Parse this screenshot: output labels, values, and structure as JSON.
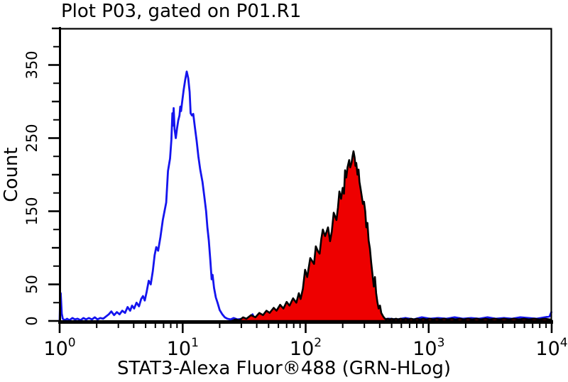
{
  "chart_data": {
    "type": "line",
    "title": "Plot P03, gated on P01.R1",
    "xlabel": "STAT3-Alexa Fluor®488 (GRN-HLog)",
    "ylabel": "Count",
    "x_scale": "log",
    "x_range": [
      1,
      10000
    ],
    "y_range": [
      0,
      400
    ],
    "grid": "off",
    "legend": "none",
    "y_ticks": {
      "labeled": [
        0,
        50,
        150,
        250,
        350
      ],
      "medium": [
        100,
        200,
        300,
        400
      ],
      "minor": [
        25,
        75,
        125,
        175,
        225,
        275,
        325,
        375
      ]
    },
    "x_ticks": {
      "decades": [
        1,
        10,
        100,
        1000,
        10000
      ],
      "minor_multiples": [
        2,
        3,
        4,
        5,
        6,
        7,
        8,
        9
      ]
    },
    "axis_color": "#000000",
    "series": [
      {
        "name": "control-open-blue-histogram",
        "color": "#1414ee",
        "fill": "none",
        "width": 2.8,
        "peak": {
          "x": 10.8,
          "count": 341
        },
        "points": [
          [
            1.0,
            0
          ],
          [
            1.01,
            30
          ],
          [
            1.02,
            38
          ],
          [
            1.04,
            10
          ],
          [
            1.06,
            3
          ],
          [
            1.1,
            1
          ],
          [
            1.15,
            3
          ],
          [
            1.2,
            1
          ],
          [
            1.27,
            4
          ],
          [
            1.33,
            2
          ],
          [
            1.4,
            3
          ],
          [
            1.48,
            1
          ],
          [
            1.56,
            4
          ],
          [
            1.64,
            2
          ],
          [
            1.73,
            4
          ],
          [
            1.83,
            2
          ],
          [
            1.93,
            5
          ],
          [
            2.03,
            2
          ],
          [
            2.14,
            4
          ],
          [
            2.26,
            3
          ],
          [
            2.38,
            6
          ],
          [
            2.51,
            9
          ],
          [
            2.63,
            13
          ],
          [
            2.77,
            8
          ],
          [
            2.92,
            12
          ],
          [
            3.07,
            9
          ],
          [
            3.23,
            14
          ],
          [
            3.4,
            11
          ],
          [
            3.57,
            19
          ],
          [
            3.74,
            14
          ],
          [
            3.88,
            21
          ],
          [
            4.03,
            17
          ],
          [
            4.22,
            25
          ],
          [
            4.42,
            20
          ],
          [
            4.6,
            30
          ],
          [
            4.76,
            34
          ],
          [
            4.92,
            28
          ],
          [
            5.1,
            40
          ],
          [
            5.3,
            55
          ],
          [
            5.5,
            50
          ],
          [
            5.72,
            68
          ],
          [
            5.92,
            90
          ],
          [
            6.1,
            101
          ],
          [
            6.32,
            96
          ],
          [
            6.6,
            115
          ],
          [
            6.9,
            138
          ],
          [
            7.12,
            150
          ],
          [
            7.35,
            162
          ],
          [
            7.6,
            205
          ],
          [
            7.9,
            222
          ],
          [
            8.1,
            248
          ],
          [
            8.25,
            284
          ],
          [
            8.34,
            267
          ],
          [
            8.45,
            291
          ],
          [
            8.6,
            262
          ],
          [
            8.8,
            250
          ],
          [
            9.0,
            263
          ],
          [
            9.2,
            274
          ],
          [
            9.42,
            281
          ],
          [
            9.56,
            293
          ],
          [
            9.7,
            287
          ],
          [
            9.92,
            300
          ],
          [
            10.2,
            316
          ],
          [
            10.5,
            330
          ],
          [
            10.8,
            341
          ],
          [
            11.1,
            332
          ],
          [
            11.4,
            313
          ],
          [
            11.62,
            284
          ],
          [
            11.9,
            281
          ],
          [
            12.2,
            283
          ],
          [
            12.6,
            264
          ],
          [
            13.0,
            246
          ],
          [
            13.42,
            225
          ],
          [
            13.9,
            207
          ],
          [
            14.5,
            190
          ],
          [
            15.0,
            170
          ],
          [
            15.52,
            150
          ],
          [
            15.9,
            128
          ],
          [
            16.32,
            110
          ],
          [
            16.8,
            82
          ],
          [
            17.2,
            57
          ],
          [
            17.52,
            63
          ],
          [
            18.0,
            45
          ],
          [
            18.62,
            32
          ],
          [
            19.23,
            25
          ],
          [
            20.0,
            15
          ],
          [
            21.0,
            9
          ],
          [
            22.0,
            5
          ],
          [
            23.1,
            3
          ],
          [
            24.5,
            2
          ],
          [
            26.0,
            4
          ],
          [
            28.0,
            2
          ],
          [
            30.5,
            3
          ],
          [
            33.0,
            1
          ],
          [
            35.5,
            2
          ],
          [
            37.0,
            9
          ],
          [
            38.6,
            2
          ],
          [
            41.0,
            1
          ],
          [
            45.0,
            2
          ],
          [
            50.0,
            1
          ],
          [
            56.0,
            2
          ],
          [
            63.0,
            1
          ],
          [
            71.0,
            2
          ],
          [
            80.0,
            1
          ],
          [
            90.0,
            2
          ],
          [
            105,
            1
          ],
          [
            122,
            2
          ],
          [
            140,
            1
          ],
          [
            163,
            2
          ],
          [
            190,
            1
          ],
          [
            221,
            2
          ],
          [
            258,
            1
          ],
          [
            300,
            2
          ],
          [
            350,
            1
          ],
          [
            408,
            2
          ],
          [
            476,
            3
          ],
          [
            555,
            2
          ],
          [
            647,
            4
          ],
          [
            755,
            2
          ],
          [
            880,
            5
          ],
          [
            1026,
            3
          ],
          [
            1196,
            4
          ],
          [
            1395,
            3
          ],
          [
            1626,
            5
          ],
          [
            1896,
            3
          ],
          [
            2211,
            4
          ],
          [
            2578,
            3
          ],
          [
            3006,
            5
          ],
          [
            3505,
            3
          ],
          [
            4087,
            4
          ],
          [
            4765,
            3
          ],
          [
            5556,
            5
          ],
          [
            6478,
            4
          ],
          [
            7553,
            3
          ],
          [
            8807,
            5
          ],
          [
            9600,
            6
          ],
          [
            10000,
            13
          ]
        ]
      },
      {
        "name": "stat3-filled-red-histogram",
        "color": "#000000",
        "fill": "#ee0000",
        "width": 2.6,
        "peak": {
          "x": 245,
          "count": 232
        },
        "points": [
          [
            25,
            0
          ],
          [
            27,
            2
          ],
          [
            29,
            1
          ],
          [
            31,
            5
          ],
          [
            33,
            3
          ],
          [
            36,
            8
          ],
          [
            39,
            5
          ],
          [
            42,
            11
          ],
          [
            45,
            8
          ],
          [
            48,
            14
          ],
          [
            51,
            11
          ],
          [
            55,
            18
          ],
          [
            58,
            14
          ],
          [
            62,
            22
          ],
          [
            66,
            17
          ],
          [
            70,
            26
          ],
          [
            74,
            21
          ],
          [
            79,
            31
          ],
          [
            84,
            25
          ],
          [
            88,
            38
          ],
          [
            91,
            30
          ],
          [
            95,
            44
          ],
          [
            99,
            70
          ],
          [
            103,
            60
          ],
          [
            109,
            86
          ],
          [
            117,
            78
          ],
          [
            121,
            102
          ],
          [
            126,
            95
          ],
          [
            130,
            92
          ],
          [
            134,
            112
          ],
          [
            138,
            125
          ],
          [
            144,
            116
          ],
          [
            152,
            128
          ],
          [
            158,
            109
          ],
          [
            163,
            122
          ],
          [
            169,
            148
          ],
          [
            178,
            138
          ],
          [
            183,
            155
          ],
          [
            188,
            177
          ],
          [
            194,
            167
          ],
          [
            200,
            182
          ],
          [
            205,
            174
          ],
          [
            209,
            206
          ],
          [
            214,
            196
          ],
          [
            219,
            210
          ],
          [
            226,
            220
          ],
          [
            230,
            210
          ],
          [
            236,
            216
          ],
          [
            241,
            226
          ],
          [
            245,
            232
          ],
          [
            250,
            224
          ],
          [
            254,
            212
          ],
          [
            258,
            216
          ],
          [
            264,
            200
          ],
          [
            269,
            207
          ],
          [
            274,
            190
          ],
          [
            280,
            180
          ],
          [
            286,
            170
          ],
          [
            292,
            160
          ],
          [
            298,
            163
          ],
          [
            305,
            150
          ],
          [
            311,
            128
          ],
          [
            318,
            134
          ],
          [
            325,
            110
          ],
          [
            333,
            99
          ],
          [
            341,
            80
          ],
          [
            350,
            62
          ],
          [
            358,
            47
          ],
          [
            366,
            60
          ],
          [
            374,
            38
          ],
          [
            383,
            26
          ],
          [
            392,
            17
          ],
          [
            402,
            21
          ],
          [
            412,
            11
          ],
          [
            424,
            7
          ],
          [
            436,
            4
          ],
          [
            450,
            2
          ],
          [
            466,
            3
          ],
          [
            482,
            2
          ],
          [
            500,
            3
          ],
          [
            520,
            2
          ],
          [
            542,
            3
          ],
          [
            566,
            2
          ],
          [
            592,
            3
          ],
          [
            620,
            2
          ],
          [
            650,
            3
          ],
          [
            684,
            2
          ],
          [
            720,
            3
          ],
          [
            760,
            2
          ],
          [
            804,
            3
          ],
          [
            852,
            2
          ],
          [
            904,
            3
          ],
          [
            960,
            2
          ],
          [
            1022,
            3
          ],
          [
            1090,
            2
          ],
          [
            1164,
            3
          ],
          [
            1246,
            2
          ],
          [
            1336,
            3
          ],
          [
            1434,
            2
          ],
          [
            1542,
            3
          ],
          [
            1660,
            2
          ],
          [
            1790,
            3
          ],
          [
            1932,
            2
          ],
          [
            2088,
            3
          ],
          [
            2260,
            2
          ],
          [
            2450,
            3
          ],
          [
            2660,
            2
          ],
          [
            2892,
            3
          ],
          [
            3148,
            2
          ],
          [
            3432,
            3
          ],
          [
            3748,
            2
          ],
          [
            4100,
            3
          ],
          [
            4490,
            2
          ],
          [
            4924,
            3
          ],
          [
            5408,
            2
          ],
          [
            5946,
            3
          ],
          [
            6546,
            2
          ],
          [
            7212,
            3
          ],
          [
            7954,
            2
          ],
          [
            8782,
            3
          ],
          [
            9704,
            2
          ],
          [
            10000,
            1
          ]
        ]
      }
    ]
  }
}
